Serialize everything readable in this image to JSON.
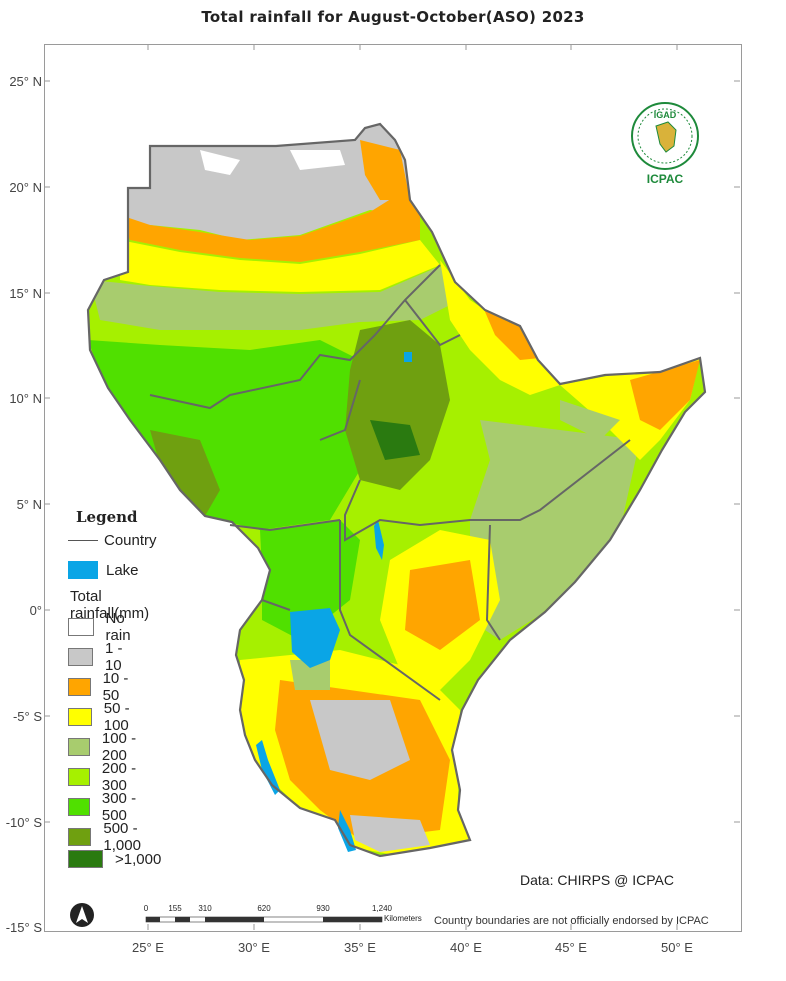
{
  "title": "Total rainfall  for  August-October(ASO)  2023",
  "latitude_labels": [
    "25° N",
    "20° N",
    "15° N",
    "10° N",
    "5° N",
    "0°",
    "-5° S",
    "-10° S",
    "-15° S"
  ],
  "longitude_labels": [
    "25° E",
    "30° E",
    "35° E",
    "40° E",
    "45° E",
    "50° E"
  ],
  "legend": {
    "title": "Legend",
    "country_label": "Country",
    "lake_label": "Lake",
    "lake_color": "#0aa5e6",
    "rain_heading": "Total rainfall(mm)",
    "classes": [
      {
        "label": "No rain",
        "color": "#ffffff"
      },
      {
        "label": "1 - 10",
        "color": "#c8c8c8"
      },
      {
        "label": "10 - 50",
        "color": "#ffa500"
      },
      {
        "label": "50 - 100",
        "color": "#ffff00"
      },
      {
        "label": "100 - 200",
        "color": "#a8cc6e"
      },
      {
        "label": "200 - 300",
        "color": "#a6f000"
      },
      {
        "label": "300 - 500",
        "color": "#50e000"
      },
      {
        "label": "500 - 1,000",
        "color": "#6fa010"
      },
      {
        "label": ">1,000",
        "color": "#2a7a10"
      }
    ]
  },
  "data_credit": "Data: CHIRPS @ ICPAC",
  "disclaimer": "Country boundaries are not officially endorsed by ICPAC",
  "scale_bar": {
    "ticks": [
      "0",
      "155",
      "310",
      "620",
      "930",
      "1,240"
    ],
    "unit": "Kilometers"
  },
  "logo": {
    "top_text": "IGAD",
    "bottom_text": "ICPAC"
  }
}
